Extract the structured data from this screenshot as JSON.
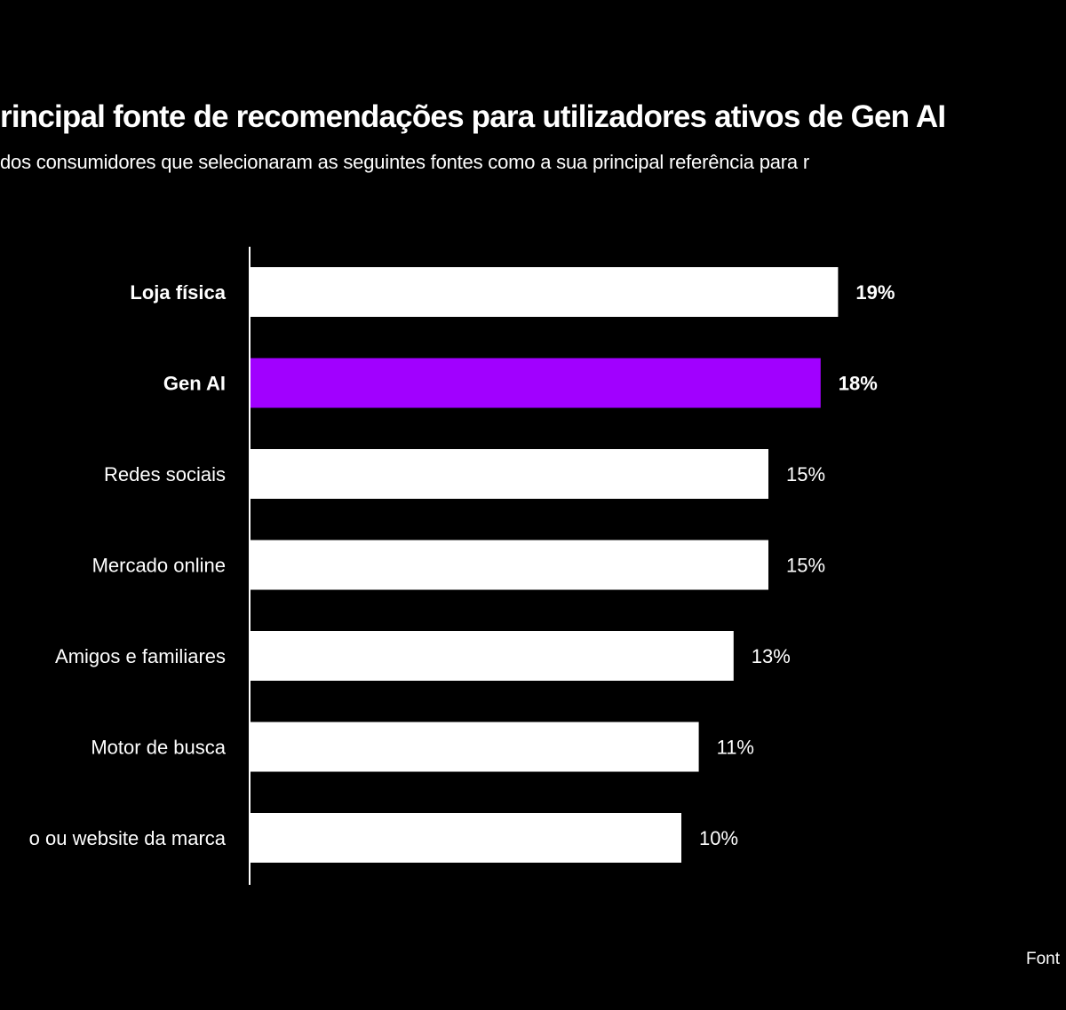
{
  "chart_data": {
    "type": "bar",
    "orientation": "horizontal",
    "title": "rincipal fonte de recomendações para utilizadores ativos de Gen AI",
    "subtitle": "dos consumidores que selecionaram as seguintes fontes como a sua principal referência para r",
    "categories": [
      "Loja física",
      "Gen AI",
      "Redes sociais",
      "Mercado online",
      "Amigos e familiares",
      "Motor de busca",
      "o ou website da marca"
    ],
    "values": [
      19,
      18,
      15,
      15,
      13,
      11,
      10
    ],
    "data_labels": [
      "19%",
      "18%",
      "15%",
      "15%",
      "13%",
      "11%",
      "10%"
    ],
    "bold_categories": [
      "Loja física",
      "Gen AI"
    ],
    "colors": {
      "default": "#ffffff",
      "highlight": "#a100ff",
      "background": "#000000"
    },
    "highlight_category": "Gen AI",
    "grid": false,
    "source": "Font"
  }
}
